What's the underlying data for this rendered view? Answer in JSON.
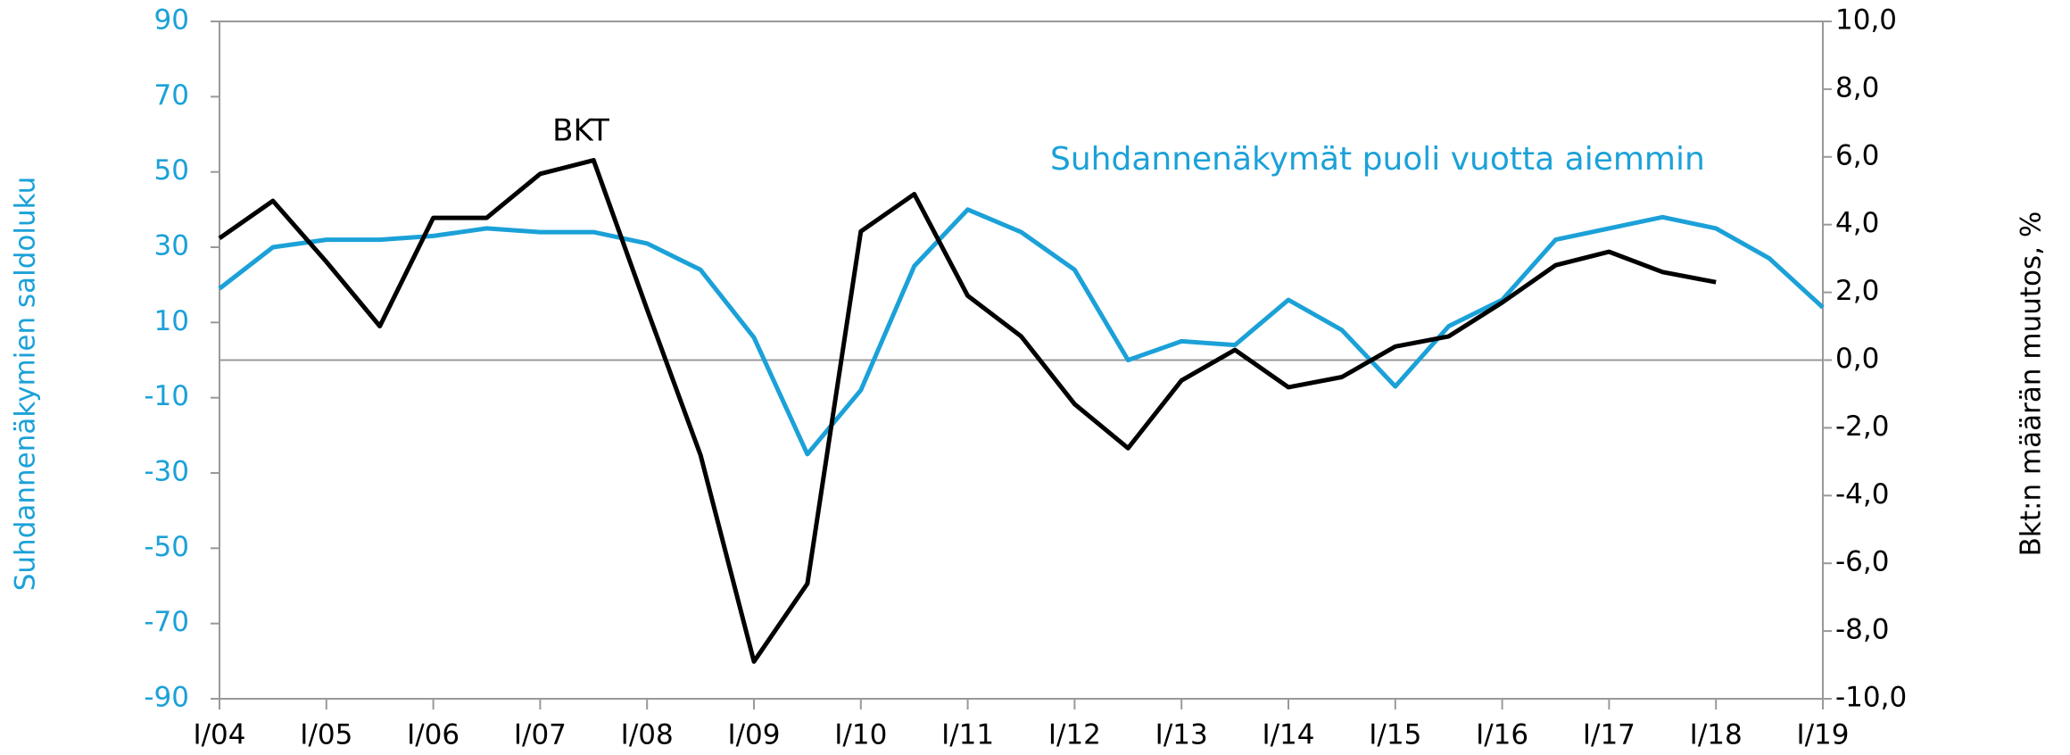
{
  "chart_data": {
    "type": "line",
    "y_label": "Suhdannenäkymien saldoluku",
    "y2_label": "Bkt:n määrän muutos, %",
    "categories": [
      "I/04",
      null,
      "I/05",
      null,
      "I/06",
      null,
      "I/07",
      null,
      "I/08",
      null,
      "I/09",
      null,
      "I/10",
      null,
      "I/11",
      null,
      "I/12",
      null,
      "I/13",
      null,
      "I/14",
      null,
      "I/15",
      null,
      "I/16",
      null,
      "I/17",
      null,
      "I/18",
      null,
      "I/19"
    ],
    "series": [
      {
        "name": "Suhdannenäkymät puoli vuotta aiemmin",
        "color": "#1ba1d8",
        "axis": "y",
        "values": [
          19,
          30,
          32,
          32,
          33,
          35,
          34,
          34,
          31,
          24,
          6,
          -25,
          -8,
          25,
          40,
          34,
          24,
          0,
          5,
          4,
          16,
          8,
          -7,
          9,
          16,
          32,
          35,
          38,
          35,
          27,
          14
        ]
      },
      {
        "name": "BKT",
        "color": "#000000",
        "axis": "y2",
        "values": [
          3.6,
          4.7,
          2.9,
          1.0,
          4.2,
          4.2,
          5.5,
          5.9,
          1.5,
          -2.8,
          -8.9,
          -6.6,
          3.8,
          4.9,
          1.9,
          0.7,
          -1.3,
          -2.6,
          -0.6,
          0.3,
          -0.8,
          -0.5,
          0.4,
          0.7,
          1.7,
          2.8,
          3.2,
          2.6,
          2.3,
          null,
          null
        ]
      }
    ],
    "ylim": [
      -90,
      90
    ],
    "yticks": [
      -90,
      -70,
      -50,
      -30,
      -10,
      10,
      30,
      50,
      70,
      90
    ],
    "y2lim": [
      -10,
      10
    ],
    "y2ticks": [
      {
        "value": -10,
        "label": "-10,0"
      },
      {
        "value": -8,
        "label": "-8,0"
      },
      {
        "value": -6,
        "label": "-6,0"
      },
      {
        "value": -4,
        "label": "-4,0"
      },
      {
        "value": -2,
        "label": "-2,0"
      },
      {
        "value": 0,
        "label": "0,0"
      },
      {
        "value": 2,
        "label": "2,0"
      },
      {
        "value": 4,
        "label": "4,0"
      },
      {
        "value": 6,
        "label": "6,0"
      },
      {
        "value": 8,
        "label": "8,0"
      },
      {
        "value": 10,
        "label": "10,0"
      }
    ],
    "y_color": "#1ba1d8"
  }
}
